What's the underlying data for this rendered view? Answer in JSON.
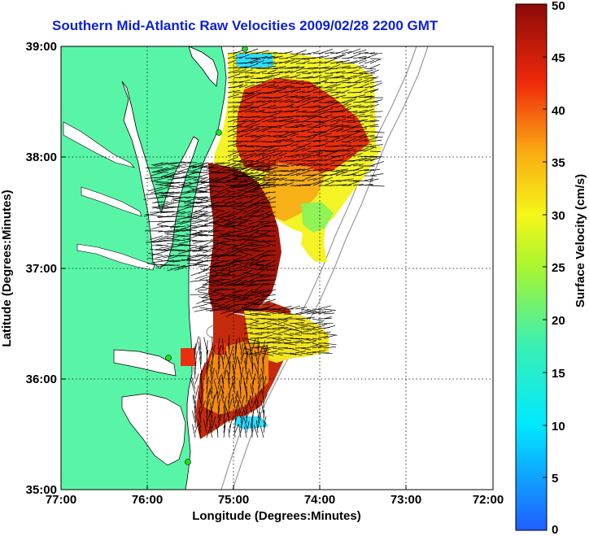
{
  "title": "Southern Mid-Atlantic Raw Velocities 2009/02/28 2200 GMT",
  "x_axis": {
    "label": "Longitude (Degrees:Minutes)",
    "ticks": [
      "77:00",
      "76:00",
      "75:00",
      "74:00",
      "73:00",
      "72:00"
    ],
    "range": [
      -77,
      -72
    ]
  },
  "y_axis": {
    "label": "Latitude (Degrees:Minutes)",
    "ticks": [
      "39:00",
      "38:00",
      "37:00",
      "36:00",
      "35:00"
    ],
    "range": [
      35,
      39
    ]
  },
  "colorbar": {
    "label": "Surface Velocity (cm/s)",
    "ticks": [
      "0",
      "5",
      "10",
      "15",
      "20",
      "25",
      "30",
      "35",
      "40",
      "45",
      "50"
    ],
    "range": [
      0,
      50
    ]
  },
  "colors": {
    "title": "#0b1fd6",
    "land": "#59f5a6",
    "ocean": "#ffffff",
    "station": "#1ee01e"
  },
  "grid": "dotted"
}
